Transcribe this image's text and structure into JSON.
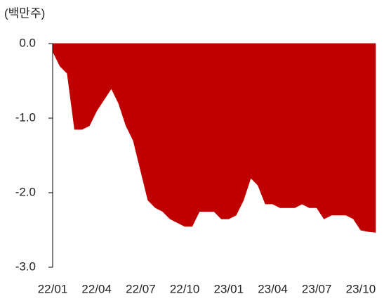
{
  "chart_data": {
    "type": "area",
    "ylabel": "(백만주)",
    "categories": [
      "22/01",
      null,
      null,
      null,
      null,
      null,
      "22/04",
      null,
      null,
      null,
      null,
      null,
      "22/07",
      null,
      null,
      null,
      null,
      null,
      "22/10",
      null,
      null,
      null,
      null,
      null,
      "23/01",
      null,
      null,
      null,
      null,
      null,
      "23/04",
      null,
      null,
      null,
      null,
      null,
      "23/07",
      null,
      null,
      null,
      null,
      null,
      "23/10",
      null,
      null
    ],
    "series": [
      {
        "color": "#c00000",
        "values": [
          -0.1,
          -0.3,
          -0.4,
          -1.15,
          -1.15,
          -1.1,
          -0.9,
          -0.75,
          -0.6,
          -0.8,
          -1.1,
          -1.3,
          -1.7,
          -2.1,
          -2.2,
          -2.25,
          -2.35,
          -2.4,
          -2.45,
          -2.45,
          -2.25,
          -2.25,
          -2.25,
          -2.35,
          -2.35,
          -2.3,
          -2.1,
          -1.8,
          -1.9,
          -2.15,
          -2.15,
          -2.2,
          -2.2,
          -2.2,
          -2.15,
          -2.2,
          -2.2,
          -2.35,
          -2.3,
          -2.3,
          -2.3,
          -2.35,
          -2.5,
          -2.52,
          -2.53
        ]
      }
    ],
    "ylim": [
      -3,
      0
    ],
    "yticks": [
      {
        "value": 0,
        "label": "0.0"
      },
      {
        "value": -1,
        "label": "-1.0"
      },
      {
        "value": -2,
        "label": "-2.0"
      },
      {
        "value": -3,
        "label": "-3.0"
      }
    ]
  }
}
